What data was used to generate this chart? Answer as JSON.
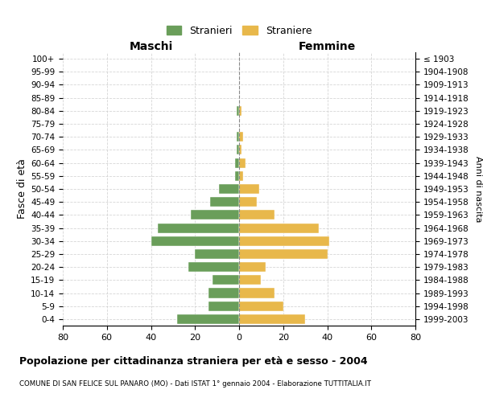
{
  "age_groups": [
    "100+",
    "95-99",
    "90-94",
    "85-89",
    "80-84",
    "75-79",
    "70-74",
    "65-69",
    "60-64",
    "55-59",
    "50-54",
    "45-49",
    "40-44",
    "35-39",
    "30-34",
    "25-29",
    "20-24",
    "15-19",
    "10-14",
    "5-9",
    "0-4"
  ],
  "birth_years": [
    "≤ 1903",
    "1904-1908",
    "1909-1913",
    "1914-1918",
    "1919-1923",
    "1924-1928",
    "1929-1933",
    "1934-1938",
    "1939-1943",
    "1944-1948",
    "1949-1953",
    "1954-1958",
    "1959-1963",
    "1964-1968",
    "1969-1973",
    "1974-1978",
    "1979-1983",
    "1984-1988",
    "1989-1993",
    "1994-1998",
    "1999-2003"
  ],
  "males": [
    0,
    0,
    0,
    0,
    1,
    0,
    1,
    1,
    2,
    2,
    9,
    13,
    22,
    37,
    40,
    20,
    23,
    12,
    14,
    14,
    28
  ],
  "females": [
    0,
    0,
    0,
    0,
    1,
    0,
    2,
    1,
    3,
    2,
    9,
    8,
    16,
    36,
    41,
    40,
    12,
    10,
    16,
    20,
    30
  ],
  "male_color": "#6a9e5a",
  "female_color": "#e8b84b",
  "title": "Popolazione per cittadinanza straniera per età e sesso - 2004",
  "subtitle": "COMUNE DI SAN FELICE SUL PANARO (MO) - Dati ISTAT 1° gennaio 2004 - Elaborazione TUTTITALIA.IT",
  "xlabel_left": "Maschi",
  "xlabel_right": "Femmine",
  "ylabel_left": "Fasce di età",
  "ylabel_right": "Anni di nascita",
  "legend_male": "Stranieri",
  "legend_female": "Straniere",
  "xlim": 80,
  "background_color": "#ffffff",
  "grid_color": "#cccccc"
}
